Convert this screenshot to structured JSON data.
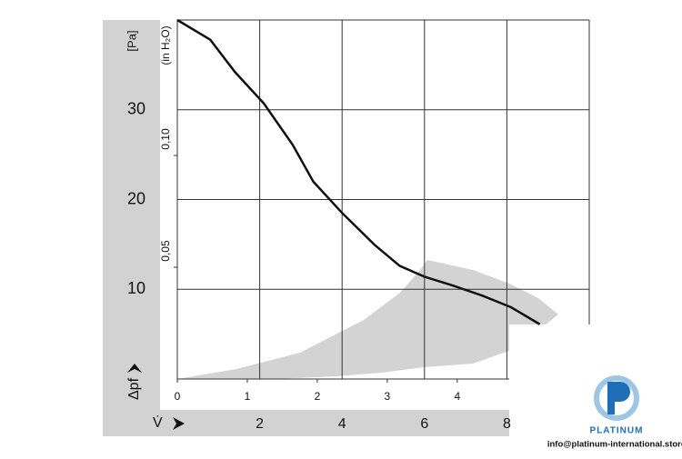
{
  "chart_data": {
    "type": "line",
    "y_label": "[Pa]",
    "y2_label": "(in H₂O)",
    "y_axis_symbol": "Δpf",
    "x_axis_symbol": "V̇",
    "x": [
      0,
      0.8,
      1.4,
      2.1,
      2.8,
      3.3,
      4.0,
      4.8,
      5.4,
      6.0,
      6.7,
      7.4,
      8.1,
      8.8
    ],
    "values": [
      40,
      37.8,
      34.2,
      30.7,
      26.1,
      22.0,
      18.5,
      14.9,
      12.6,
      11.4,
      10.4,
      9.3,
      8.0,
      6.1
    ],
    "color": "#111111",
    "xlim": [
      0,
      10
    ],
    "xticks": [
      2,
      4,
      6,
      8
    ],
    "x2lim": [
      0,
      5.886
    ],
    "x2ticks": [
      0,
      1,
      2,
      3,
      4
    ],
    "ylim": [
      0,
      40
    ],
    "yticks": [
      10,
      20,
      30
    ],
    "y2lim": [
      0,
      0.1606
    ],
    "y2ticks": [
      {
        "value": 0.05,
        "label": "0,05"
      },
      {
        "value": 0.1,
        "label": "0,10"
      }
    ],
    "grid": true
  },
  "watermark": {
    "brand": "PLATINUM",
    "contact": "info@platinum-international.store"
  }
}
